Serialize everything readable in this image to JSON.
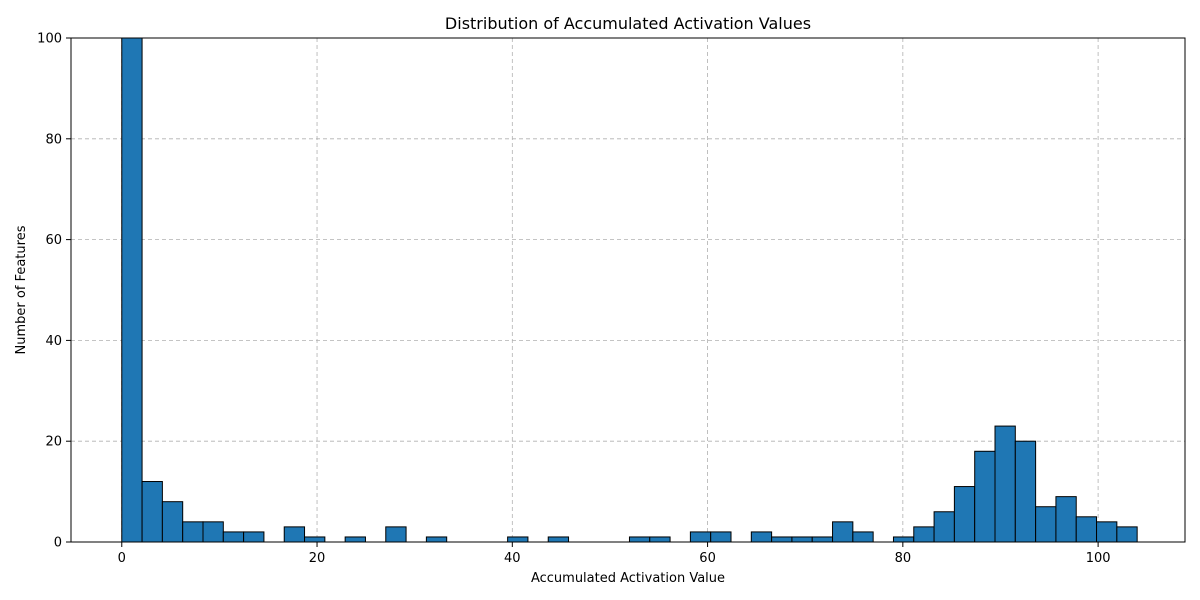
{
  "chart_data": {
    "type": "bar",
    "title": "Distribution of Accumulated Activation Values",
    "xlabel": "Accumulated Activation Value",
    "ylabel": "Number of Features",
    "xlim": [
      -5.2,
      108.9
    ],
    "ylim": [
      0,
      100
    ],
    "xticks": [
      0,
      20,
      40,
      60,
      80,
      100
    ],
    "yticks": [
      0,
      20,
      40,
      60,
      80,
      100
    ],
    "grid": true,
    "bar_color": "#1f77b4",
    "edge_color": "#000000",
    "bin_start": 0,
    "bin_width": 2.08,
    "values": [
      100,
      12,
      8,
      4,
      4,
      2,
      2,
      0,
      3,
      1,
      0,
      1,
      0,
      3,
      0,
      1,
      0,
      0,
      0,
      1,
      0,
      1,
      0,
      0,
      0,
      1,
      1,
      0,
      2,
      2,
      0,
      2,
      1,
      1,
      1,
      4,
      2,
      0,
      1,
      3,
      6,
      11,
      18,
      23,
      20,
      7,
      9,
      5,
      4,
      3
    ]
  }
}
